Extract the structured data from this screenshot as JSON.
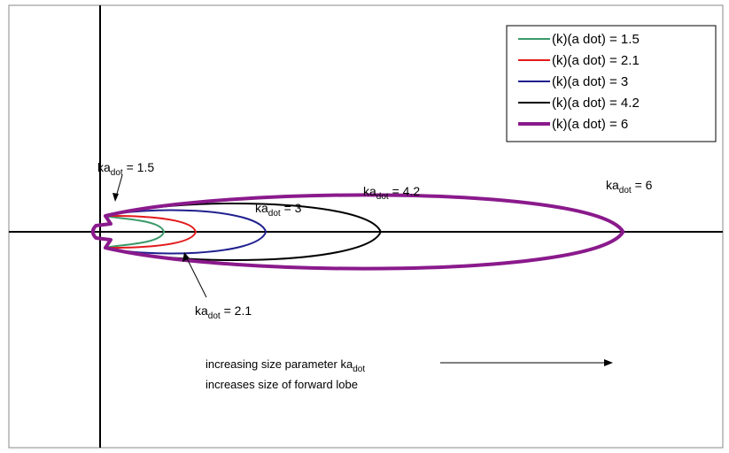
{
  "chart_data": {
    "type": "polar",
    "title": "",
    "xlabel": "",
    "ylabel": "",
    "legend_position": "top-right",
    "series": [
      {
        "name": "(k)(a dot) = 1.5",
        "ka": 1.5,
        "color": "#3a9a6a",
        "forward_extent": 1.0,
        "half_width": 0.28
      },
      {
        "name": "(k)(a dot) = 2.1",
        "ka": 2.1,
        "color": "#e31a1c",
        "forward_extent": 1.5,
        "half_width": 0.35
      },
      {
        "name": "(k)(a dot) = 3",
        "ka": 3,
        "color": "#1f1f8f",
        "forward_extent": 2.6,
        "half_width": 0.55
      },
      {
        "name": "(k)(a dot) = 4.2",
        "ka": 4.2,
        "color": "#000000",
        "forward_extent": 4.4,
        "half_width": 0.75
      },
      {
        "name": "(k)(a dot) = 6",
        "ka": 6,
        "color": "#8a1a8c",
        "forward_extent": 8.2,
        "half_width": 1.0
      }
    ],
    "lobe_labels": [
      {
        "main": "ka",
        "sub": "dot",
        "rest": " = 1.5"
      },
      {
        "main": "ka",
        "sub": "dot",
        "rest": " = 2.1"
      },
      {
        "main": "ka",
        "sub": "dot",
        "rest": " = 3"
      },
      {
        "main": "ka",
        "sub": "dot",
        "rest": " = 4.2"
      },
      {
        "main": "ka",
        "sub": "dot",
        "rest": " = 6"
      }
    ],
    "annotation": {
      "line1_main": "increasing size parameter ka",
      "line1_sub": "dot",
      "line2": "increases size of forward lobe"
    }
  }
}
